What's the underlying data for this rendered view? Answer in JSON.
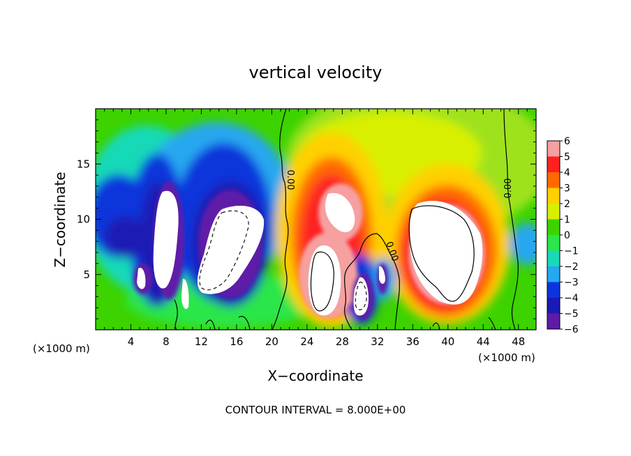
{
  "chart_data": {
    "type": "heatmap",
    "title": "vertical velocity",
    "xlabel": "X−coordinate",
    "ylabel": "Z−coordinate",
    "x_unit_label": "(×1000 m)",
    "y_unit_label": "(×1000 m)",
    "xlim": [
      0,
      50
    ],
    "ylim": [
      0,
      20
    ],
    "x_ticks": [
      4,
      8,
      12,
      16,
      20,
      24,
      28,
      32,
      36,
      40,
      44,
      48
    ],
    "y_ticks": [
      5,
      10,
      15
    ],
    "footer": "CONTOUR INTERVAL = 8.000E+00",
    "contour_labels": [
      "0.00",
      "0.00",
      "0.00"
    ],
    "colorbar": {
      "ticks": [
        6,
        5,
        4,
        3,
        2,
        1,
        0,
        -1,
        -2,
        -3,
        -4,
        -5,
        -6
      ],
      "tick_labels": [
        "6",
        "5",
        "4",
        "3",
        "2",
        "1",
        "0",
        "−1",
        "−2",
        "−3",
        "−4",
        "−5",
        "−6"
      ],
      "colors": [
        "#f6a0a0",
        "#ff2020",
        "#ff6a00",
        "#ffd000",
        "#d8f000",
        "#3cd300",
        "#2ae64a",
        "#19d9b8",
        "#26a7ef",
        "#0b35dc",
        "#1a1ab4",
        "#5f1aa8"
      ],
      "range": [
        -6,
        6
      ]
    },
    "features": [
      {
        "name": "updraft-core",
        "x": 26.0,
        "z": 5.0,
        "peak": 8
      },
      {
        "name": "updraft-upper",
        "x": 27.5,
        "z": 11.5,
        "peak": 7
      },
      {
        "name": "updraft-east",
        "x": 39.5,
        "z": 8.0,
        "peak": 8
      },
      {
        "name": "downdraft-central",
        "x": 14.5,
        "z": 7.5,
        "peak": -9
      },
      {
        "name": "downdraft-west",
        "x": 7.5,
        "z": 8.5,
        "peak": -7
      },
      {
        "name": "downdraft-small",
        "x": 30.0,
        "z": 3.0,
        "peak": -6
      }
    ]
  }
}
